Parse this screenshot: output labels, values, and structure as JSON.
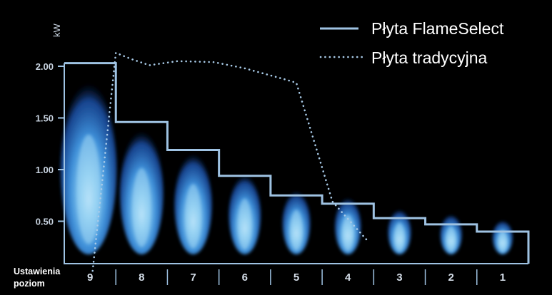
{
  "chart_data": {
    "type": "line",
    "unit": "kW",
    "xlabel_line1": "Ustawienia",
    "xlabel_line2": "poziom",
    "categories": [
      "9",
      "8",
      "7",
      "6",
      "5",
      "4",
      "3",
      "2",
      "1"
    ],
    "y_ticks": [
      "2.00",
      "1.50",
      "1.00",
      "0.50"
    ],
    "ylim": [
      0,
      2.5
    ],
    "grid": false,
    "legend_position": "top-right",
    "series": [
      {
        "name": "Płyta FlameSelect",
        "style": "solid-step",
        "color": "#9fc3e3",
        "values": [
          2.03,
          1.46,
          1.19,
          0.94,
          0.75,
          0.67,
          0.53,
          0.47,
          0.4
        ]
      },
      {
        "name": "Płyta tradycyjna",
        "style": "dotted",
        "color": "#9fc3e3",
        "x": [
          8.95,
          8.75,
          8.5,
          8.2,
          7.85,
          7.3,
          6.6,
          6.0,
          5.2,
          5.0,
          4.3,
          3.6
        ],
        "values": [
          0.02,
          0.95,
          2.13,
          2.07,
          2.01,
          2.05,
          2.04,
          1.98,
          1.87,
          1.84,
          0.69,
          0.3
        ]
      }
    ],
    "flame_colors": {
      "outer": "#1b56b8",
      "mid": "#3f9ae0",
      "core": "#9fd6f4"
    }
  }
}
